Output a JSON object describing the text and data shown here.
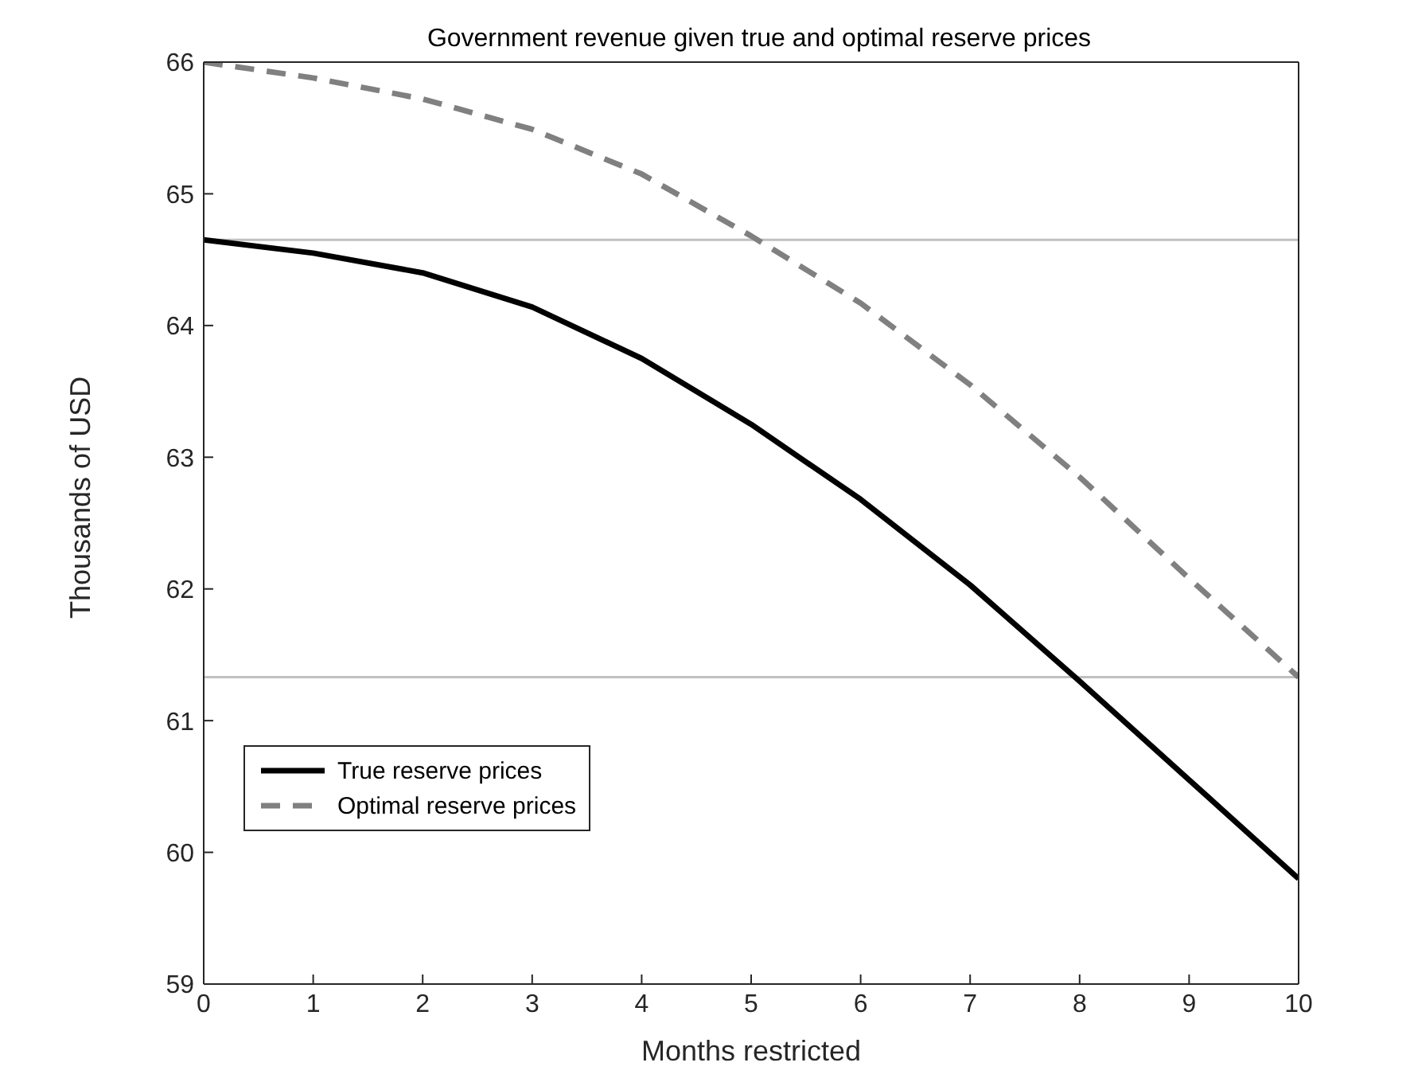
{
  "chart_data": {
    "type": "line",
    "title": "Government revenue given true and optimal reserve prices",
    "xlabel": "Months restricted",
    "ylabel": "Thousands of USD",
    "x": [
      0,
      1,
      2,
      3,
      4,
      5,
      6,
      7,
      8,
      9,
      10
    ],
    "series": [
      {
        "name": "True reserve prices",
        "color": "#000000",
        "line_style": "solid",
        "values": [
          64.65,
          64.55,
          64.4,
          64.14,
          63.75,
          63.25,
          62.68,
          62.03,
          61.3,
          60.55,
          59.8
        ]
      },
      {
        "name": "Optimal reserve prices",
        "color": "#808080",
        "line_style": "dashed",
        "values": [
          66,
          65.88,
          65.72,
          65.49,
          65.15,
          64.68,
          64.17,
          63.55,
          62.85,
          62.08,
          61.33
        ]
      }
    ],
    "xlim": [
      0,
      10
    ],
    "xticks": [
      0,
      1,
      2,
      3,
      4,
      5,
      6,
      7,
      8,
      9,
      10
    ],
    "ylim": [
      59,
      66
    ],
    "yticks": [
      59,
      60,
      61,
      62,
      63,
      64,
      65,
      66
    ],
    "ref_lines": [
      {
        "axis": "y",
        "value": 64.65,
        "color": "#c0c0c0"
      },
      {
        "axis": "y",
        "value": 61.33,
        "color": "#c0c0c0"
      }
    ],
    "grid": false,
    "legend": "bottom left",
    "marker": "none"
  }
}
